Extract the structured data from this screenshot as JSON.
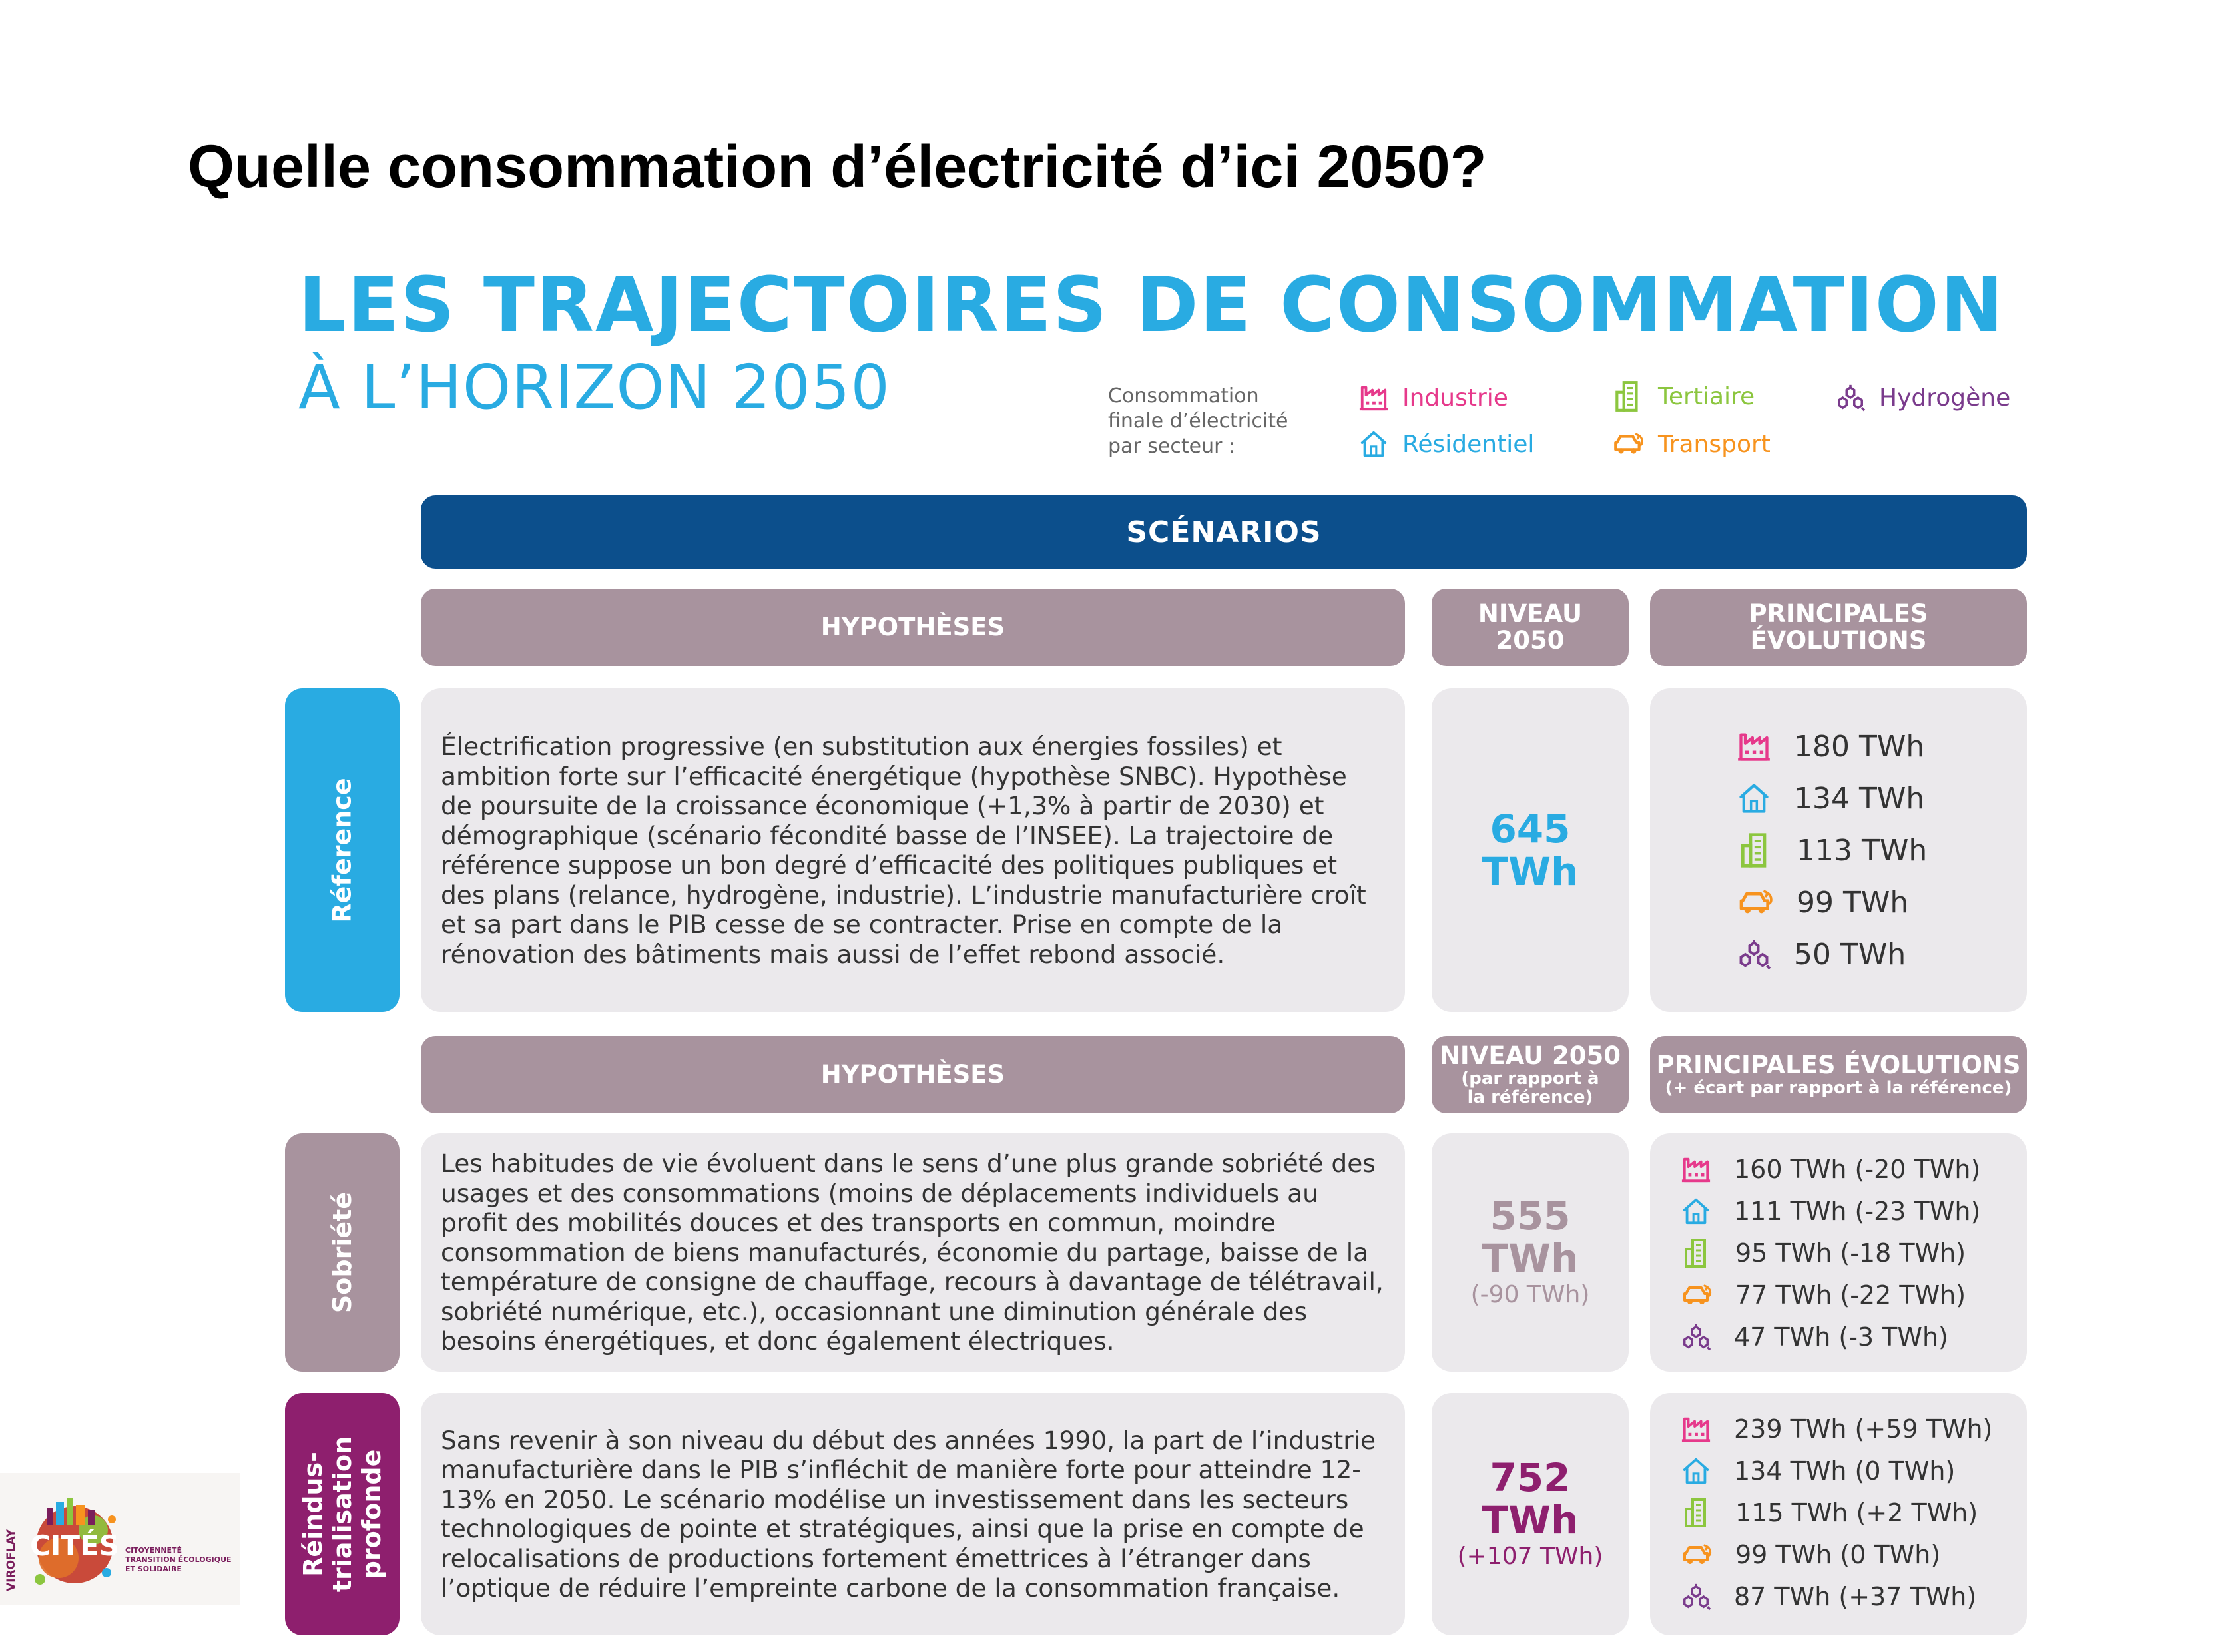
{
  "slide_title": "Quelle consommation d’électricité d’ici 2050?",
  "main_title": {
    "line1": "LES TRAJECTOIRES DE CONSOMMATION",
    "line2": "À L’HORIZON 2050"
  },
  "legend": {
    "caption": [
      "Consommation",
      "finale d’électricité",
      "par secteur :"
    ],
    "items": [
      {
        "label": "Industrie",
        "icon": "factory-icon",
        "color": "#e6398b"
      },
      {
        "label": "Résidentiel",
        "icon": "house-icon",
        "color": "#29abe2"
      },
      {
        "label": "Tertiaire",
        "icon": "building-icon",
        "color": "#8cc63f"
      },
      {
        "label": "Transport",
        "icon": "car-plug-icon",
        "color": "#f7931e"
      },
      {
        "label": "Hydrogène",
        "icon": "hydrogen-molecule-icon",
        "color": "#7a3b8c"
      }
    ]
  },
  "scenarios_label": "SCÉNARIOS",
  "headers": {
    "reference": {
      "hypotheses": "HYPOTHÈSES",
      "level_line1": "NIVEAU",
      "level_line2": "2050",
      "evolutions_line1": "PRINCIPALES",
      "evolutions_line2": "ÉVOLUTIONS"
    },
    "alternatives": {
      "hypotheses": "HYPOTHÈSES",
      "level_line1": "NIVEAU 2050",
      "level_sub1": "(par rapport à",
      "level_sub2": "la référence)",
      "evolutions_line1": "PRINCIPALES ÉVOLUTIONS",
      "evolutions_sub": "(+ écart par rapport à la référence)"
    }
  },
  "scenarios": [
    {
      "name": "Réference",
      "name_lines": [
        "Réference"
      ],
      "color": "#29abe2",
      "hypothesis": "Électrification progressive (en substitution aux énergies fossiles) et ambition forte sur l’efficacité énergétique (hypothèse SNBC). Hypothèse de poursuite de la croissance économique (+1,3% à partir de 2030) et démographique (scénario fécondité basse de l’INSEE). La trajectoire de référence suppose un bon degré d’efficacité des politiques publiques et des plans (relance, hydrogène, industrie). L’industrie manufacturière croît et sa part dans le PIB cesse de se contracter. Prise en compte de la rénovation des bâtiments mais aussi de l’effet rebond associé.",
      "level_value": "645",
      "level_unit": "TWh",
      "level_delta": "",
      "level_color": "#29abe2",
      "evolutions": [
        "180 TWh",
        "134 TWh",
        "113 TWh",
        "99 TWh",
        "50 TWh"
      ]
    },
    {
      "name": "Sobriété",
      "name_lines": [
        "Sobriété"
      ],
      "color": "#a8939e",
      "hypothesis": "Les habitudes de vie évoluent dans le sens d’une plus grande sobriété des usages et des consommations (moins de déplacements individuels au profit des mobilités douces et des transports en commun, moindre consommation de biens manufacturés, économie du partage, baisse de la température de consigne de chauffage, recours à davantage de télétravail, sobriété numérique, etc.), occasionnant une diminution générale des besoins énergétiques, et donc également électriques.",
      "level_value": "555",
      "level_unit": "TWh",
      "level_delta": "(-90 TWh)",
      "level_color": "#a8939e",
      "evolutions": [
        "160 TWh (-20 TWh)",
        "111 TWh (-23 TWh)",
        "95 TWh (-18 TWh)",
        "77 TWh (-22 TWh)",
        "47 TWh (-3 TWh)"
      ]
    },
    {
      "name": "Réindus-trialisation profonde",
      "name_lines": [
        "Réindus-",
        "trialisation",
        "profonde"
      ],
      "color": "#8e1f6e",
      "hypothesis": "Sans revenir à son niveau du début des années 1990, la part de l’industrie manufacturière dans le PIB s’infléchit de manière forte pour atteindre 12-13% en 2050. Le scénario modélise un investissement dans les secteurs technologiques de pointe et stratégiques, ainsi que la prise en compte de relocalisations de productions fortement émettrices à l’étranger dans l’optique de réduire l’empreinte carbone de la consommation française.",
      "level_value": "752",
      "level_unit": "TWh",
      "level_delta": "(+107 TWh)",
      "level_color": "#8e1f6e",
      "evolutions": [
        "239 TWh (+59 TWh)",
        "134 TWh (0 TWh)",
        "115 TWh (+2 TWh)",
        "99 TWh (0 TWh)",
        "87 TWh (+37 TWh)"
      ]
    }
  ],
  "logo": {
    "vertical_text": "VIROFLAY",
    "name": "CITÉS",
    "tagline": [
      "CITOYENNETÉ",
      "TRANSITION ÉCOLOGIQUE",
      "ET SOLIDAIRE"
    ]
  }
}
